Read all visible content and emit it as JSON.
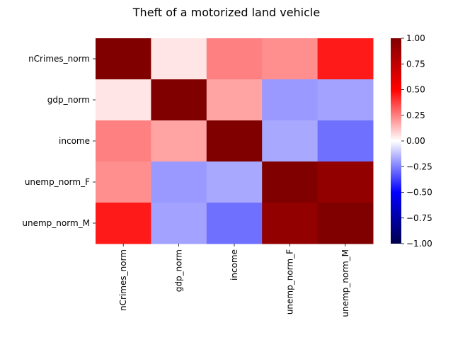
{
  "chart_data": {
    "type": "heatmap",
    "title": "Theft of a motorized land vehicle",
    "row_labels": [
      "nCrimes_norm",
      "gdp_norm",
      "income",
      "unemp_norm_F",
      "unemp_norm_M"
    ],
    "col_labels": [
      "nCrimes_norm",
      "gdp_norm",
      "income",
      "unemp_norm_F",
      "unemp_norm_M"
    ],
    "values": [
      [
        1.0,
        0.05,
        0.25,
        0.22,
        0.45
      ],
      [
        0.05,
        1.0,
        0.18,
        -0.2,
        -0.18
      ],
      [
        0.25,
        0.18,
        1.0,
        -0.17,
        -0.28
      ],
      [
        0.22,
        -0.2,
        -0.17,
        1.0,
        0.93
      ],
      [
        0.45,
        -0.18,
        -0.28,
        0.93,
        1.0
      ]
    ],
    "colorbar": {
      "colormap": "seismic",
      "vmin": -1.0,
      "vmax": 1.0,
      "ticks": [
        "1.00",
        "0.75",
        "0.50",
        "0.25",
        "0.00",
        "−0.25",
        "−0.50",
        "−0.75",
        "−1.00"
      ]
    }
  }
}
